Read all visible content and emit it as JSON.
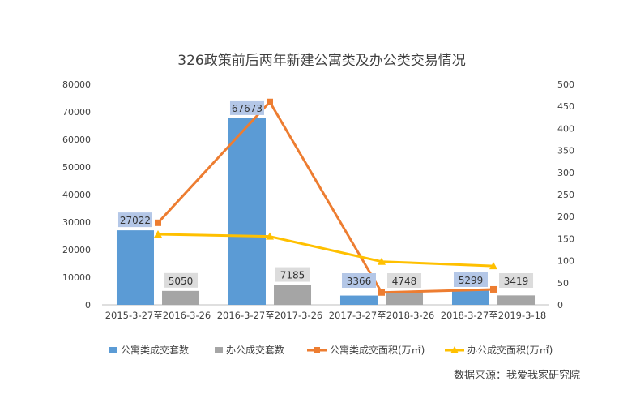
{
  "chart_data": {
    "type": "bar",
    "title": "326政策前后两年新建公寓类及办公类交易情况",
    "categories": [
      "2015-3-27至2016-3-26",
      "2016-3-27至2017-3-26",
      "2017-3-27至2018-3-26",
      "2018-3-27至2019-3-18"
    ],
    "y_left": {
      "ylim": [
        0,
        80000
      ],
      "ticks": [
        "0",
        "10000",
        "20000",
        "30000",
        "40000",
        "50000",
        "60000",
        "70000",
        "80000"
      ]
    },
    "y_right": {
      "ylim": [
        0,
        500
      ],
      "ticks": [
        "0",
        "50",
        "100",
        "150",
        "200",
        "250",
        "300",
        "350",
        "400",
        "450",
        "500"
      ]
    },
    "series": [
      {
        "name": "公寓类成交套数",
        "kind": "bar",
        "axis": "left",
        "color": "#5b9bd5",
        "values": [
          27022,
          67673,
          3366,
          5299
        ],
        "labels": [
          "27022",
          "67673",
          "3366",
          "5299"
        ],
        "label_bg": "#b4c7e7"
      },
      {
        "name": "办公成交套数",
        "kind": "bar",
        "axis": "left",
        "color": "#a5a5a5",
        "values": [
          5050,
          7185,
          4748,
          3419
        ],
        "labels": [
          "5050",
          "7185",
          "4748",
          "3419"
        ],
        "label_bg": "#dcdcdc"
      },
      {
        "name": "公寓类成交面积(万㎡)",
        "kind": "line",
        "axis": "right",
        "color": "#ed7d31",
        "marker": "square",
        "values": [
          186,
          460,
          28,
          35
        ]
      },
      {
        "name": "办公成交面积(万㎡)",
        "kind": "line",
        "axis": "right",
        "color": "#ffc000",
        "marker": "triangle",
        "values": [
          160,
          155,
          98,
          88
        ]
      }
    ],
    "legend_position": "bottom",
    "grid": false
  },
  "source_note": "数据来源：我爱我家研究院"
}
